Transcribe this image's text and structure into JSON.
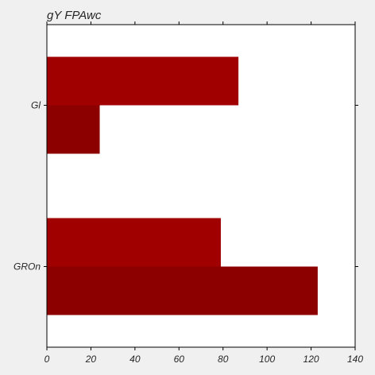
{
  "chart_data": {
    "type": "bar",
    "orientation": "horizontal",
    "title": "gY FPAwc",
    "xlabel": "",
    "ylabel": "",
    "categories": [
      "Gl",
      "GROn"
    ],
    "series": [
      {
        "values": [
          87,
          79
        ],
        "color": "#a00000"
      },
      {
        "values": [
          24,
          123
        ],
        "color": "#8c0000"
      }
    ],
    "xlim": [
      0,
      140
    ],
    "xticks": [
      0,
      20,
      40,
      60,
      80,
      100,
      120,
      140
    ],
    "grid": false,
    "legend": "none"
  }
}
